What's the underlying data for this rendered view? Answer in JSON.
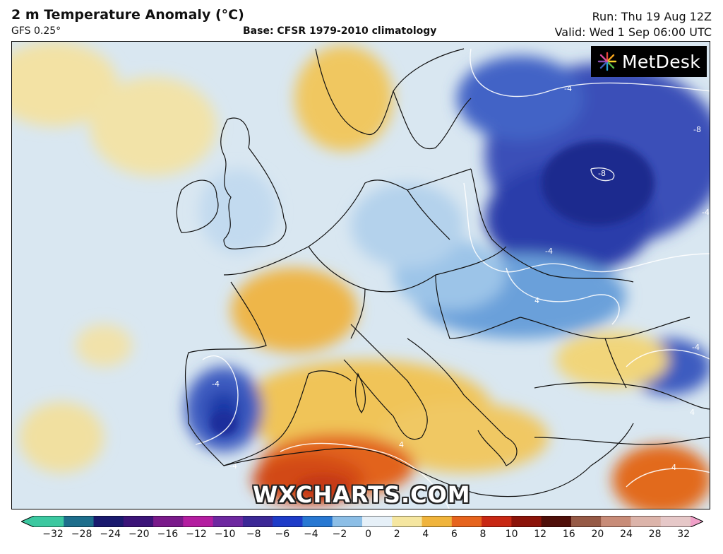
{
  "header": {
    "title": "2 m Temperature Anomaly (°C)",
    "model": "GFS 0.25°",
    "base": "Base: CFSR 1979-2010 climatology",
    "run": "Run: Thu 19 Aug 12Z",
    "valid": "Valid: Wed 1 Sep 06:00 UTC"
  },
  "logo": {
    "text": "MetDesk"
  },
  "watermark": "WXCHARTS.COM",
  "contour_labels": [
    "-4",
    "-4",
    "-4",
    "-4",
    "-8",
    "-8",
    "-4",
    "-4",
    "4",
    "4",
    "4",
    "4"
  ],
  "colorbar": {
    "ticks": [
      "−32",
      "−28",
      "−24",
      "−20",
      "−16",
      "−12",
      "−10",
      "−8",
      "−6",
      "−4",
      "−2",
      "0",
      "2",
      "4",
      "6",
      "8",
      "10",
      "12",
      "16",
      "20",
      "24",
      "28",
      "32"
    ],
    "colors": [
      "#3cc8a0",
      "#1e6e8c",
      "#1a1a6e",
      "#3c1478",
      "#7a1a8a",
      "#b41ea0",
      "#6e28a0",
      "#3c2896",
      "#1e3cc8",
      "#2878d2",
      "#8cbee6",
      "#e6f0f8",
      "#f5e6a0",
      "#f0b43c",
      "#e6641e",
      "#c82814",
      "#8c140a",
      "#50100a",
      "#965a46",
      "#c88c78",
      "#dcb4aa",
      "#e6c8c8",
      "#f0a0c8"
    ]
  },
  "colors": {
    "cold": "#1e3cb4",
    "warm": "#e6a032",
    "neutral": "#e8f0f6"
  }
}
